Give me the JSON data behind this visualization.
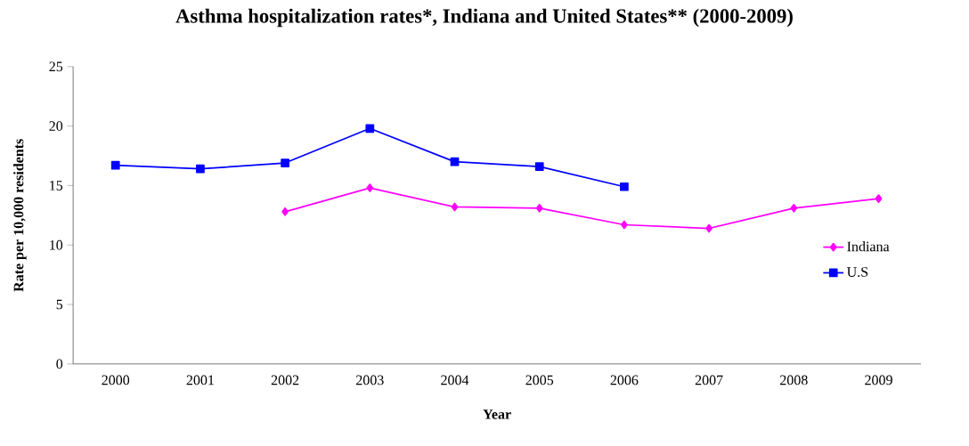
{
  "chart_data": {
    "type": "line",
    "title": "Asthma hospitalization rates*, Indiana and United States** (2000-2009)",
    "xlabel": "Year",
    "ylabel": "Rate per 10,000 residents",
    "categories": [
      "2000",
      "2001",
      "2002",
      "2003",
      "2004",
      "2005",
      "2006",
      "2007",
      "2008",
      "2009"
    ],
    "series": [
      {
        "name": "Indiana",
        "color": "#ff00ff",
        "marker": "diamond",
        "values": [
          null,
          null,
          12.8,
          14.8,
          13.2,
          13.1,
          11.7,
          11.4,
          13.1,
          13.9
        ]
      },
      {
        "name": "U.S",
        "color": "#0000ff",
        "marker": "square",
        "values": [
          16.7,
          16.4,
          16.9,
          19.8,
          17.0,
          16.6,
          14.9,
          null,
          null,
          null
        ]
      }
    ],
    "ylim": [
      0,
      25
    ],
    "yticks": [
      0,
      5,
      10,
      15,
      20,
      25
    ],
    "grid": false,
    "legend": "right",
    "line_style": "solid"
  }
}
